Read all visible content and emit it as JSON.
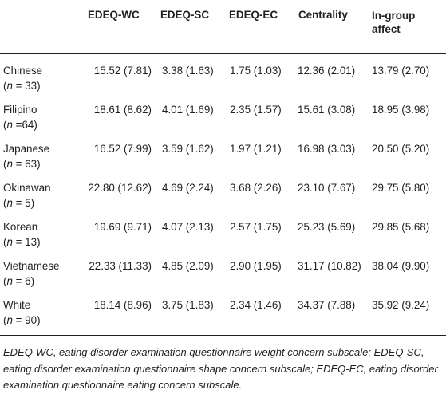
{
  "table": {
    "headers": [
      "EDEQ-WC",
      "EDEQ-SC",
      "EDEQ-EC",
      "Centrality",
      "In-group affect"
    ],
    "rows": [
      {
        "group": "Chinese",
        "sample": [
          "(",
          "n",
          " = 33)"
        ],
        "cells": [
          "15.52 (7.81)",
          "3.38 (1.63)",
          "1.75 (1.03)",
          "12.36 (2.01)",
          "13.79 (2.70)"
        ]
      },
      {
        "group": "Filipino",
        "sample": [
          "(",
          "n",
          " =64)"
        ],
        "cells": [
          "18.61 (8.62)",
          "4.01 (1.69)",
          "2.35 (1.57)",
          "15.61 (3.08)",
          "18.95 (3.98)"
        ]
      },
      {
        "group": "Japanese",
        "sample": [
          "(",
          "n",
          " = 63)"
        ],
        "cells": [
          "16.52 (7.99)",
          "3.59 (1.62)",
          "1.97 (1.21)",
          "16.98 (3.03)",
          "20.50 (5.20)"
        ]
      },
      {
        "group": "Okinawan",
        "sample": [
          "(",
          "n",
          " = 5)"
        ],
        "cells": [
          "22.80 (12.62)",
          "4.69 (2.24)",
          "3.68 (2.26)",
          "23.10 (7.67)",
          "29.75 (5.80)"
        ]
      },
      {
        "group": "Korean",
        "sample": [
          "(",
          "n",
          " = 13)"
        ],
        "cells": [
          "19.69 (9.71)",
          "4.07 (2.13)",
          "2.57 (1.75)",
          "25.23 (5.69)",
          "29.85 (5.68)"
        ]
      },
      {
        "group": "Vietnamese",
        "sample": [
          "(",
          "n",
          " = 6)"
        ],
        "cells": [
          "22.33 (11.33)",
          "4.85 (2.09)",
          "2.90 (1.95)",
          "31.17 (10.82)",
          "38.04 (9.90)"
        ]
      },
      {
        "group": "White",
        "sample": [
          "(",
          "n",
          " = 90)"
        ],
        "cells": [
          "18.14 (8.96)",
          "3.75 (1.83)",
          "2.34 (1.46)",
          "34.37 (7.88)",
          "35.92 (9.24)"
        ]
      }
    ],
    "footnote": "EDEQ-WC, eating disorder examination questionnaire weight concern subscale; EDEQ-SC, eating disorder examination questionnaire shape concern subscale; EDEQ-EC, eating disorder examination questionnaire eating concern subscale."
  }
}
